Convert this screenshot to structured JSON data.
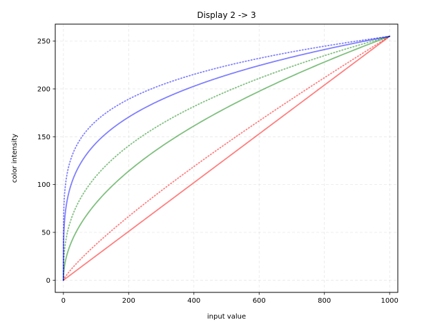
{
  "chart_data": {
    "type": "line",
    "title": "Display 2 -> 3",
    "xlabel": "input value",
    "ylabel": "color intensity",
    "xlim": [
      -25,
      1025
    ],
    "ylim": [
      -12.75,
      267.75
    ],
    "x_ticks": [
      0,
      200,
      400,
      600,
      800,
      1000
    ],
    "y_ticks": [
      0,
      50,
      100,
      150,
      200,
      250
    ],
    "x_tick_labels": [
      "0",
      "200",
      "400",
      "600",
      "800",
      "1000"
    ],
    "y_tick_labels": [
      "0",
      "50",
      "100",
      "150",
      "200",
      "250"
    ],
    "grid": true,
    "legend": "none",
    "series": [
      {
        "color": "#ff0000",
        "style": "solid",
        "gamma": 1.0,
        "x": [
          0,
          100,
          200,
          300,
          400,
          500,
          600,
          700,
          800,
          900,
          1000
        ],
        "y": [
          0,
          25.5,
          51,
          76.5,
          102,
          127.5,
          153,
          178.5,
          204,
          229.5,
          255
        ]
      },
      {
        "color": "#ff0000",
        "style": "dotted",
        "gamma": 1.2,
        "x": [
          0,
          100,
          200,
          300,
          400,
          500,
          600,
          700,
          800,
          900,
          1000
        ],
        "y": [
          0,
          37.5,
          66.5,
          93.5,
          119,
          143.5,
          167,
          189.5,
          211.5,
          233.5,
          255
        ]
      },
      {
        "color": "#008000",
        "style": "solid",
        "gamma": 2.0,
        "x": [
          0,
          100,
          200,
          300,
          400,
          500,
          600,
          700,
          800,
          900,
          1000
        ],
        "y": [
          0,
          80.5,
          114,
          139.5,
          161,
          180,
          197.5,
          213.5,
          228,
          242,
          255
        ]
      },
      {
        "color": "#008000",
        "style": "dotted",
        "gamma": 2.7,
        "x": [
          0,
          100,
          200,
          300,
          400,
          500,
          600,
          700,
          800,
          900,
          1000
        ],
        "y": [
          0,
          108.5,
          140,
          163,
          181.5,
          197.5,
          211.5,
          224,
          235,
          245.5,
          255
        ]
      },
      {
        "color": "#0000ff",
        "style": "solid",
        "gamma": 4.0,
        "x": [
          0,
          100,
          200,
          300,
          400,
          500,
          600,
          700,
          800,
          900,
          1000
        ],
        "y": [
          0,
          143,
          170.5,
          188.5,
          203,
          214.5,
          224.5,
          233,
          241,
          248,
          255
        ]
      },
      {
        "color": "#0000ff",
        "style": "dotted",
        "gamma": 5.4,
        "x": [
          0,
          100,
          200,
          300,
          400,
          500,
          600,
          700,
          800,
          900,
          1000
        ],
        "y": [
          0,
          167,
          189.5,
          204,
          215,
          224,
          231.5,
          238,
          244,
          249.5,
          255
        ]
      }
    ]
  }
}
